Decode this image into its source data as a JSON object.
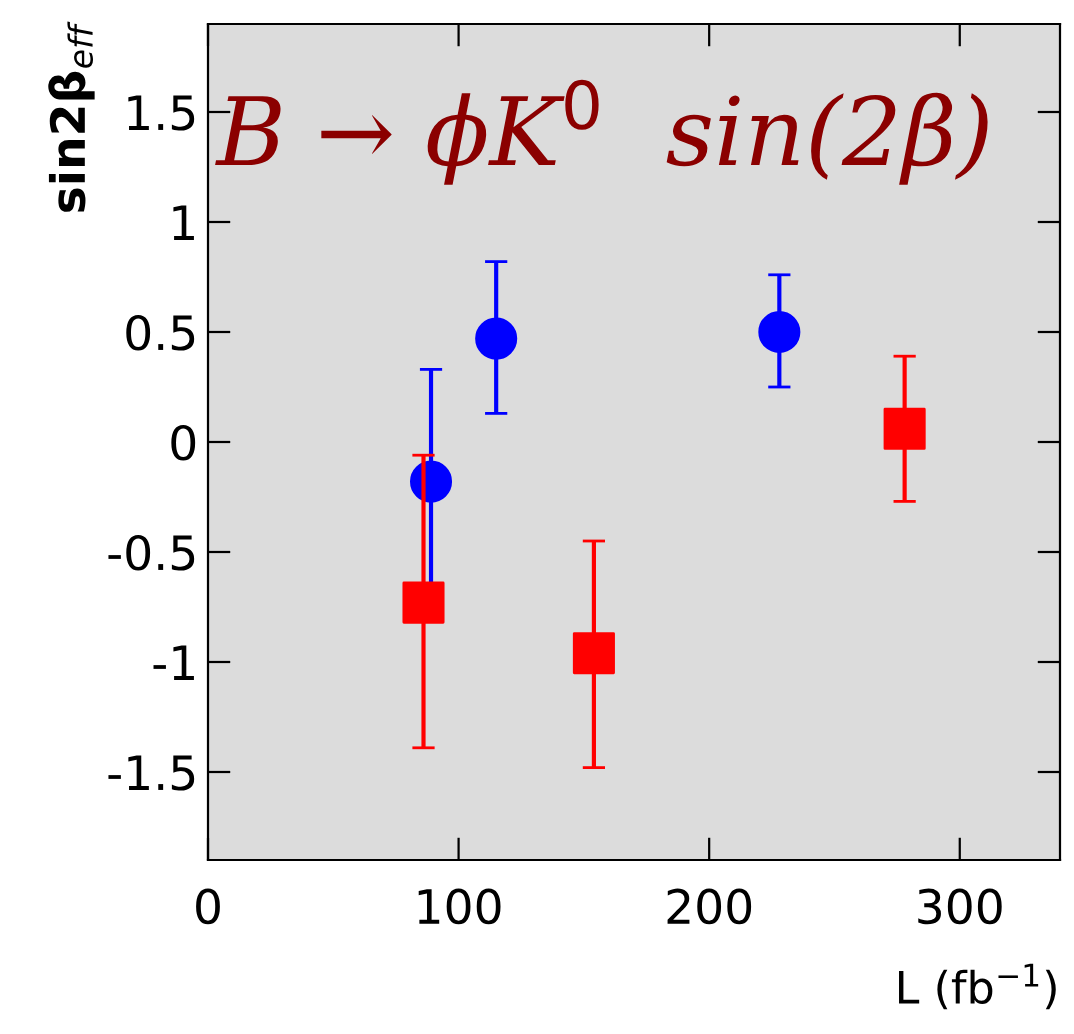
{
  "chart_data": {
    "type": "scatter",
    "title": "B → ϕK$^{0}$  sin(2β)",
    "xlabel": "L (fb$^{−1}$)",
    "ylabel": "sin2β$_{eff}$",
    "xlim": [
      0,
      340
    ],
    "ylim": [
      -1.9,
      1.9
    ],
    "xticks": [
      0,
      100,
      200,
      300
    ],
    "yticks": [
      -1.5,
      -1,
      -0.5,
      0,
      0.5,
      1,
      1.5
    ],
    "grid": false,
    "legend": false,
    "series": [
      {
        "color": "#0000ff",
        "marker": "circle",
        "x": [
          89,
          115,
          228
        ],
        "values": [
          -0.18,
          0.47,
          0.5
        ],
        "errors": [
          [
            -0.65,
            0.33
          ],
          [
            0.13,
            0.82
          ],
          [
            0.25,
            0.76
          ]
        ]
      },
      {
        "color": "#ff0000",
        "marker": "square",
        "x": [
          86,
          154,
          278
        ],
        "values": [
          -0.73,
          -0.96,
          0.06
        ],
        "errors": [
          [
            -1.39,
            -0.06
          ],
          [
            -1.48,
            -0.45
          ],
          [
            -0.27,
            0.39
          ]
        ]
      }
    ]
  }
}
